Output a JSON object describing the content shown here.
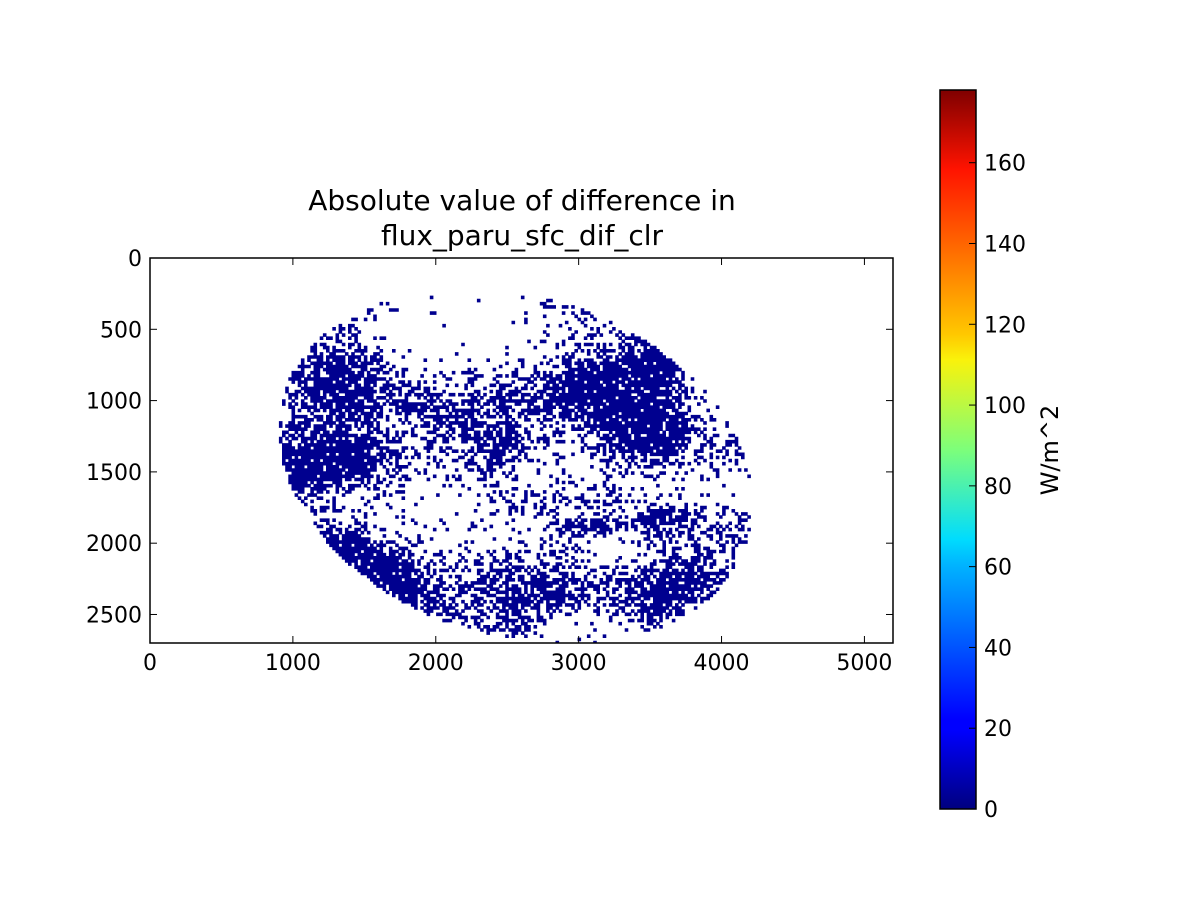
{
  "chart_data": {
    "type": "heatmap",
    "title_lines": [
      "Absolute value of difference in",
      "flux_paru_sfc_dif_clr"
    ],
    "xlim": [
      0,
      5200
    ],
    "ylim": [
      2700,
      0
    ],
    "x_ticks": [
      0,
      1000,
      2000,
      3000,
      4000,
      5000
    ],
    "y_ticks": [
      0,
      500,
      1000,
      1500,
      2000,
      2500
    ],
    "colormap": "jet",
    "colorbar": {
      "label": "W/m^2",
      "range": [
        0,
        178
      ],
      "ticks": [
        0,
        20,
        40,
        60,
        80,
        100,
        120,
        140,
        160
      ]
    },
    "disk": {
      "center": [
        2550,
        1450
      ],
      "radii": [
        1700,
        1190
      ],
      "rotation_deg": 18
    },
    "dominant_value": 0,
    "dominant_color": "#00008f",
    "background_color": "#ffffff"
  }
}
